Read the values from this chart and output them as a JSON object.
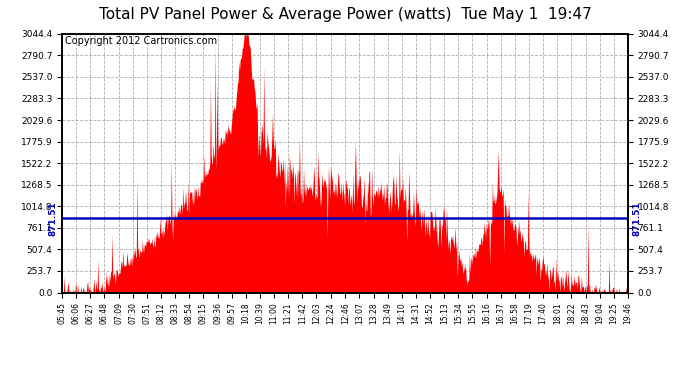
{
  "title": "Total PV Panel Power & Average Power (watts)  Tue May 1  19:47",
  "copyright": "Copyright 2012 Cartronics.com",
  "average_power": 871.51,
  "y_max": 3044.4,
  "y_min": 0.0,
  "y_ticks": [
    0.0,
    253.7,
    507.4,
    761.1,
    1014.8,
    1268.5,
    1522.2,
    1775.9,
    2029.6,
    2283.3,
    2537.0,
    2790.7,
    3044.4
  ],
  "fill_color": "#FF0000",
  "line_color": "#FF0000",
  "avg_line_color": "#0000BB",
  "background_color": "#FFFFFF",
  "grid_color": "#999999",
  "title_fontsize": 11,
  "copyright_fontsize": 7,
  "x_labels": [
    "05:45",
    "06:06",
    "06:27",
    "06:48",
    "07:09",
    "07:30",
    "07:51",
    "08:12",
    "08:33",
    "08:54",
    "09:15",
    "09:36",
    "09:57",
    "10:18",
    "10:39",
    "11:00",
    "11:21",
    "11:42",
    "12:03",
    "12:24",
    "12:46",
    "13:07",
    "13:28",
    "13:49",
    "14:10",
    "14:31",
    "14:52",
    "15:13",
    "15:34",
    "15:55",
    "16:16",
    "16:37",
    "16:58",
    "17:19",
    "17:40",
    "18:01",
    "18:22",
    "18:43",
    "19:04",
    "19:25",
    "19:46"
  ],
  "num_points": 840
}
